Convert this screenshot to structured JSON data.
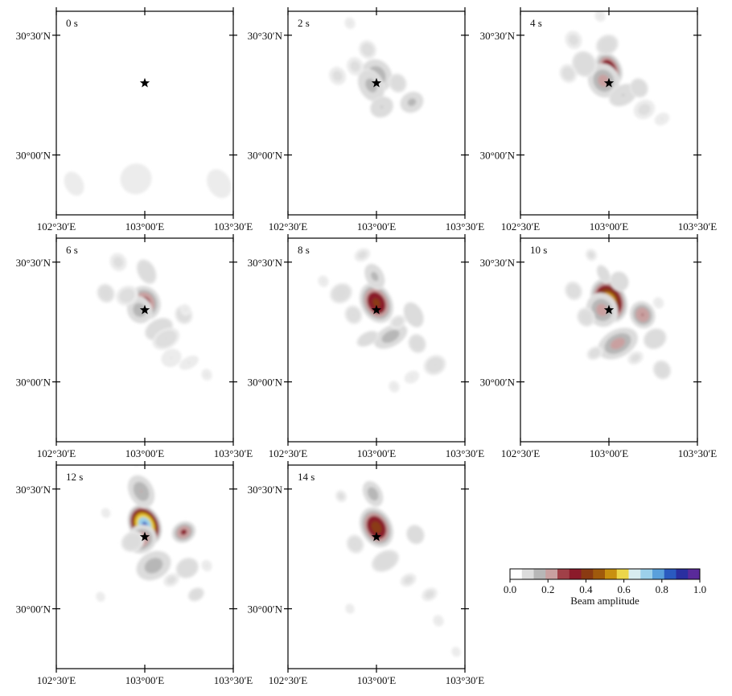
{
  "chart_data": {
    "type": "heatmap",
    "title": "",
    "star_location": {
      "lon": 103.0,
      "lat": 30.3
    },
    "lon_range": [
      102.5,
      103.5
    ],
    "lat_range": [
      29.75,
      30.6
    ],
    "x_ticks": [
      {
        "value": 102.5,
        "label": "102°30′E"
      },
      {
        "value": 103.0,
        "label": "103°00′E"
      },
      {
        "value": 103.5,
        "label": "103°30′E"
      }
    ],
    "y_ticks": [
      {
        "value": 30.5,
        "label": "30°30′N"
      },
      {
        "value": 30.0,
        "label": "30°00′N"
      }
    ],
    "colorbar": {
      "label": "Beam amplitude",
      "range": [
        0.0,
        1.0
      ],
      "tick_labels": [
        "0.0",
        "0.2",
        "0.4",
        "0.6",
        "0.8",
        "1.0"
      ],
      "colors": [
        "#ffffff",
        "#dcdcdc",
        "#b7b7b7",
        "#c9a0a0",
        "#a04048",
        "#8b1a2a",
        "#8a3a12",
        "#a05a0c",
        "#c89010",
        "#ecd64a",
        "#d8ecf0",
        "#9cd0ea",
        "#5aa0dc",
        "#2a5ac0",
        "#2a2fa0",
        "#5a2a9a"
      ]
    },
    "panels": [
      {
        "label": "0 s",
        "blobs": [
          {
            "lon": 102.6,
            "lat": 29.88,
            "rx": 0.04,
            "ry": 0.05,
            "a": 0.02
          },
          {
            "lon": 102.95,
            "lat": 29.9,
            "rx": 0.07,
            "ry": 0.06,
            "a": 0.02
          },
          {
            "lon": 103.42,
            "lat": 29.88,
            "rx": 0.05,
            "ry": 0.06,
            "a": 0.02
          }
        ]
      },
      {
        "label": "2 s",
        "blobs": [
          {
            "lon": 103.0,
            "lat": 30.33,
            "rx": 0.05,
            "ry": 0.05,
            "a": 0.22
          },
          {
            "lon": 102.97,
            "lat": 30.29,
            "rx": 0.04,
            "ry": 0.05,
            "a": 0.18
          },
          {
            "lon": 103.2,
            "lat": 30.22,
            "rx": 0.04,
            "ry": 0.03,
            "a": 0.17
          },
          {
            "lon": 103.03,
            "lat": 30.2,
            "rx": 0.04,
            "ry": 0.03,
            "a": 0.15
          },
          {
            "lon": 103.12,
            "lat": 30.3,
            "rx": 0.03,
            "ry": 0.03,
            "a": 0.08
          },
          {
            "lon": 102.95,
            "lat": 30.44,
            "rx": 0.03,
            "ry": 0.03,
            "a": 0.05
          },
          {
            "lon": 102.78,
            "lat": 30.33,
            "rx": 0.03,
            "ry": 0.03,
            "a": 0.04
          },
          {
            "lon": 102.88,
            "lat": 30.37,
            "rx": 0.03,
            "ry": 0.03,
            "a": 0.04
          },
          {
            "lon": 102.85,
            "lat": 30.55,
            "rx": 0.02,
            "ry": 0.02,
            "a": 0.03
          }
        ]
      },
      {
        "label": "4 s",
        "blobs": [
          {
            "lon": 103.0,
            "lat": 30.36,
            "rx": 0.04,
            "ry": 0.05,
            "a": 0.42
          },
          {
            "lon": 102.97,
            "lat": 30.31,
            "rx": 0.05,
            "ry": 0.05,
            "a": 0.25
          },
          {
            "lon": 103.08,
            "lat": 30.25,
            "rx": 0.05,
            "ry": 0.03,
            "a": 0.15
          },
          {
            "lon": 103.17,
            "lat": 30.28,
            "rx": 0.03,
            "ry": 0.03,
            "a": 0.1
          },
          {
            "lon": 102.86,
            "lat": 30.38,
            "rx": 0.04,
            "ry": 0.04,
            "a": 0.1
          },
          {
            "lon": 102.99,
            "lat": 30.46,
            "rx": 0.04,
            "ry": 0.03,
            "a": 0.08
          },
          {
            "lon": 102.77,
            "lat": 30.34,
            "rx": 0.03,
            "ry": 0.03,
            "a": 0.05
          },
          {
            "lon": 103.2,
            "lat": 30.19,
            "rx": 0.04,
            "ry": 0.03,
            "a": 0.04
          },
          {
            "lon": 102.8,
            "lat": 30.48,
            "rx": 0.03,
            "ry": 0.03,
            "a": 0.04
          },
          {
            "lon": 103.3,
            "lat": 30.15,
            "rx": 0.03,
            "ry": 0.02,
            "a": 0.03
          },
          {
            "lon": 102.95,
            "lat": 30.58,
            "rx": 0.02,
            "ry": 0.02,
            "a": 0.03
          }
        ]
      },
      {
        "label": "6 s",
        "blobs": [
          {
            "lon": 103.0,
            "lat": 30.33,
            "rx": 0.05,
            "ry": 0.05,
            "a": 0.34
          },
          {
            "lon": 102.97,
            "lat": 30.3,
            "rx": 0.04,
            "ry": 0.04,
            "a": 0.2
          },
          {
            "lon": 103.08,
            "lat": 30.22,
            "rx": 0.05,
            "ry": 0.03,
            "a": 0.13
          },
          {
            "lon": 103.01,
            "lat": 30.46,
            "rx": 0.03,
            "ry": 0.04,
            "a": 0.1
          },
          {
            "lon": 102.78,
            "lat": 30.37,
            "rx": 0.03,
            "ry": 0.03,
            "a": 0.07
          },
          {
            "lon": 103.12,
            "lat": 30.18,
            "rx": 0.05,
            "ry": 0.03,
            "a": 0.06
          },
          {
            "lon": 103.22,
            "lat": 30.28,
            "rx": 0.03,
            "ry": 0.03,
            "a": 0.06
          },
          {
            "lon": 102.9,
            "lat": 30.36,
            "rx": 0.04,
            "ry": 0.03,
            "a": 0.05
          },
          {
            "lon": 102.85,
            "lat": 30.5,
            "rx": 0.03,
            "ry": 0.03,
            "a": 0.04
          },
          {
            "lon": 103.25,
            "lat": 30.08,
            "rx": 0.04,
            "ry": 0.02,
            "a": 0.03
          },
          {
            "lon": 103.15,
            "lat": 30.1,
            "rx": 0.04,
            "ry": 0.03,
            "a": 0.03
          },
          {
            "lon": 103.35,
            "lat": 30.03,
            "rx": 0.02,
            "ry": 0.02,
            "a": 0.03
          },
          {
            "lon": 103.23,
            "lat": 30.3,
            "rx": 0.02,
            "ry": 0.02,
            "a": 0.03
          }
        ]
      },
      {
        "label": "8 s",
        "blobs": [
          {
            "lon": 103.0,
            "lat": 30.33,
            "rx": 0.05,
            "ry": 0.06,
            "a": 0.42
          },
          {
            "lon": 103.08,
            "lat": 30.19,
            "rx": 0.06,
            "ry": 0.03,
            "a": 0.2
          },
          {
            "lon": 102.99,
            "lat": 30.44,
            "rx": 0.03,
            "ry": 0.04,
            "a": 0.17
          },
          {
            "lon": 103.21,
            "lat": 30.28,
            "rx": 0.03,
            "ry": 0.04,
            "a": 0.14
          },
          {
            "lon": 102.95,
            "lat": 30.18,
            "rx": 0.04,
            "ry": 0.02,
            "a": 0.1
          },
          {
            "lon": 103.23,
            "lat": 30.16,
            "rx": 0.03,
            "ry": 0.03,
            "a": 0.08
          },
          {
            "lon": 102.8,
            "lat": 30.37,
            "rx": 0.04,
            "ry": 0.03,
            "a": 0.07
          },
          {
            "lon": 102.87,
            "lat": 30.28,
            "rx": 0.03,
            "ry": 0.03,
            "a": 0.06
          },
          {
            "lon": 103.33,
            "lat": 30.07,
            "rx": 0.04,
            "ry": 0.03,
            "a": 0.06
          },
          {
            "lon": 103.12,
            "lat": 30.25,
            "rx": 0.03,
            "ry": 0.02,
            "a": 0.05
          },
          {
            "lon": 102.92,
            "lat": 30.53,
            "rx": 0.03,
            "ry": 0.02,
            "a": 0.04
          },
          {
            "lon": 103.2,
            "lat": 30.02,
            "rx": 0.03,
            "ry": 0.02,
            "a": 0.03
          },
          {
            "lon": 102.7,
            "lat": 30.42,
            "rx": 0.02,
            "ry": 0.02,
            "a": 0.03
          },
          {
            "lon": 103.1,
            "lat": 29.98,
            "rx": 0.02,
            "ry": 0.02,
            "a": 0.03
          }
        ]
      },
      {
        "label": "10 s",
        "blobs": [
          {
            "lon": 103.0,
            "lat": 30.34,
            "rx": 0.055,
            "ry": 0.065,
            "a": 0.58
          },
          {
            "lon": 102.96,
            "lat": 30.3,
            "rx": 0.05,
            "ry": 0.05,
            "a": 0.25
          },
          {
            "lon": 103.05,
            "lat": 30.16,
            "rx": 0.07,
            "ry": 0.04,
            "a": 0.25
          },
          {
            "lon": 103.19,
            "lat": 30.28,
            "rx": 0.04,
            "ry": 0.04,
            "a": 0.3
          },
          {
            "lon": 103.06,
            "lat": 30.42,
            "rx": 0.03,
            "ry": 0.03,
            "a": 0.14
          },
          {
            "lon": 102.97,
            "lat": 30.45,
            "rx": 0.02,
            "ry": 0.03,
            "a": 0.1
          },
          {
            "lon": 103.26,
            "lat": 30.18,
            "rx": 0.04,
            "ry": 0.03,
            "a": 0.11
          },
          {
            "lon": 102.8,
            "lat": 30.38,
            "rx": 0.03,
            "ry": 0.03,
            "a": 0.06
          },
          {
            "lon": 102.87,
            "lat": 30.27,
            "rx": 0.03,
            "ry": 0.03,
            "a": 0.07
          },
          {
            "lon": 103.3,
            "lat": 30.05,
            "rx": 0.03,
            "ry": 0.03,
            "a": 0.08
          },
          {
            "lon": 102.92,
            "lat": 30.12,
            "rx": 0.03,
            "ry": 0.02,
            "a": 0.05
          },
          {
            "lon": 103.15,
            "lat": 30.1,
            "rx": 0.03,
            "ry": 0.02,
            "a": 0.04
          },
          {
            "lon": 102.9,
            "lat": 30.53,
            "rx": 0.02,
            "ry": 0.02,
            "a": 0.04
          },
          {
            "lon": 103.28,
            "lat": 30.33,
            "rx": 0.02,
            "ry": 0.02,
            "a": 0.03
          }
        ]
      },
      {
        "label": "12 s",
        "blobs": [
          {
            "lon": 103.0,
            "lat": 30.35,
            "rx": 0.05,
            "ry": 0.06,
            "a": 0.82
          },
          {
            "lon": 102.98,
            "lat": 30.29,
            "rx": 0.05,
            "ry": 0.04,
            "a": 0.3
          },
          {
            "lon": 102.98,
            "lat": 30.49,
            "rx": 0.04,
            "ry": 0.05,
            "a": 0.22
          },
          {
            "lon": 103.22,
            "lat": 30.32,
            "rx": 0.04,
            "ry": 0.03,
            "a": 0.32
          },
          {
            "lon": 103.05,
            "lat": 30.18,
            "rx": 0.06,
            "ry": 0.04,
            "a": 0.2
          },
          {
            "lon": 102.93,
            "lat": 30.28,
            "rx": 0.04,
            "ry": 0.03,
            "a": 0.08
          },
          {
            "lon": 103.24,
            "lat": 30.17,
            "rx": 0.04,
            "ry": 0.03,
            "a": 0.1
          },
          {
            "lon": 103.29,
            "lat": 30.06,
            "rx": 0.03,
            "ry": 0.02,
            "a": 0.07
          },
          {
            "lon": 103.15,
            "lat": 30.12,
            "rx": 0.03,
            "ry": 0.02,
            "a": 0.04
          },
          {
            "lon": 102.95,
            "lat": 30.62,
            "rx": 0.02,
            "ry": 0.02,
            "a": 0.03
          },
          {
            "lon": 102.75,
            "lat": 30.05,
            "rx": 0.02,
            "ry": 0.02,
            "a": 0.02
          },
          {
            "lon": 103.35,
            "lat": 30.18,
            "rx": 0.02,
            "ry": 0.02,
            "a": 0.03
          },
          {
            "lon": 102.78,
            "lat": 30.4,
            "rx": 0.02,
            "ry": 0.02,
            "a": 0.02
          }
        ]
      },
      {
        "label": "14 s",
        "blobs": [
          {
            "lon": 103.0,
            "lat": 30.34,
            "rx": 0.05,
            "ry": 0.06,
            "a": 0.44
          },
          {
            "lon": 102.98,
            "lat": 30.48,
            "rx": 0.03,
            "ry": 0.04,
            "a": 0.2
          },
          {
            "lon": 103.05,
            "lat": 30.2,
            "rx": 0.05,
            "ry": 0.03,
            "a": 0.09
          },
          {
            "lon": 103.22,
            "lat": 30.31,
            "rx": 0.03,
            "ry": 0.03,
            "a": 0.1
          },
          {
            "lon": 102.88,
            "lat": 30.27,
            "rx": 0.03,
            "ry": 0.03,
            "a": 0.06
          },
          {
            "lon": 102.8,
            "lat": 30.47,
            "rx": 0.02,
            "ry": 0.02,
            "a": 0.04
          },
          {
            "lon": 103.18,
            "lat": 30.12,
            "rx": 0.03,
            "ry": 0.02,
            "a": 0.04
          },
          {
            "lon": 103.3,
            "lat": 30.06,
            "rx": 0.03,
            "ry": 0.02,
            "a": 0.04
          },
          {
            "lon": 103.35,
            "lat": 29.95,
            "rx": 0.02,
            "ry": 0.02,
            "a": 0.03
          },
          {
            "lon": 102.85,
            "lat": 30.0,
            "rx": 0.02,
            "ry": 0.02,
            "a": 0.02
          },
          {
            "lon": 103.45,
            "lat": 29.82,
            "rx": 0.02,
            "ry": 0.02,
            "a": 0.02
          }
        ]
      }
    ]
  }
}
